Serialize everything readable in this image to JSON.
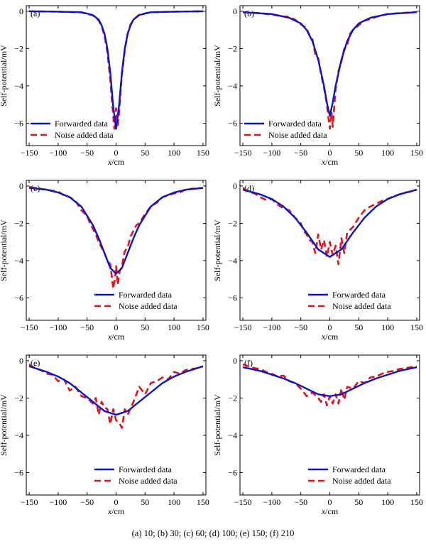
{
  "caption": "(a) 10; (b) 30; (c) 60; (d) 100; (e) 150; (f) 210",
  "chart_data": [
    {
      "type": "line",
      "panel_label": "(a)",
      "xlabel": "x/cm",
      "ylabel": "Self-potential/mV",
      "xlim": [
        -155,
        155
      ],
      "ylim": [
        -7.2,
        0.3
      ],
      "xticks": [
        -150,
        -100,
        -50,
        0,
        50,
        100,
        150
      ],
      "yticks": [
        0,
        -2,
        -4,
        -6
      ],
      "legend_position": "bottom-left",
      "series": [
        {
          "name": "Forwarded data",
          "color": "#0a14c8",
          "dash": "solid",
          "x": [
            -150,
            -100,
            -60,
            -40,
            -30,
            -25,
            -20,
            -15,
            -10,
            -5,
            0,
            5,
            10,
            15,
            20,
            25,
            30,
            40,
            60,
            100,
            150
          ],
          "y": [
            0,
            -0.02,
            -0.05,
            -0.2,
            -0.45,
            -0.75,
            -1.2,
            -2.0,
            -3.3,
            -5.1,
            -6.3,
            -5.1,
            -3.3,
            -2.0,
            -1.2,
            -0.75,
            -0.45,
            -0.2,
            -0.05,
            -0.02,
            0
          ]
        },
        {
          "name": "Noise added data",
          "color": "#e0141e",
          "dash": "dashed",
          "x": [
            -150,
            -100,
            -60,
            -40,
            -30,
            -25,
            -20,
            -15,
            -10,
            -5,
            -3,
            0,
            3,
            5,
            10,
            15,
            20,
            25,
            30,
            40,
            60,
            100,
            150
          ],
          "y": [
            0,
            -0.02,
            -0.06,
            -0.22,
            -0.5,
            -0.8,
            -1.3,
            -2.2,
            -3.7,
            -5.6,
            -6.3,
            -5.2,
            -6.1,
            -5.5,
            -3.4,
            -2.1,
            -1.2,
            -0.7,
            -0.45,
            -0.18,
            -0.05,
            -0.02,
            0
          ]
        }
      ]
    },
    {
      "type": "line",
      "panel_label": "(b)",
      "xlabel": "x/cm",
      "ylabel": "Self-potential/mV",
      "xlim": [
        -155,
        155
      ],
      "ylim": [
        -7.2,
        0.3
      ],
      "xticks": [
        -150,
        -100,
        -50,
        0,
        50,
        100,
        150
      ],
      "yticks": [
        0,
        -2,
        -4,
        -6
      ],
      "legend_position": "bottom-left",
      "series": [
        {
          "name": "Forwarded data",
          "color": "#0a14c8",
          "dash": "solid",
          "x": [
            -150,
            -100,
            -70,
            -50,
            -40,
            -30,
            -20,
            -10,
            -5,
            0,
            5,
            10,
            20,
            30,
            40,
            50,
            70,
            100,
            150
          ],
          "y": [
            -0.05,
            -0.15,
            -0.35,
            -0.65,
            -1.0,
            -1.6,
            -2.6,
            -4.0,
            -4.9,
            -5.6,
            -4.9,
            -4.0,
            -2.6,
            -1.6,
            -1.0,
            -0.65,
            -0.35,
            -0.15,
            -0.05
          ]
        },
        {
          "name": "Noise added data",
          "color": "#e0141e",
          "dash": "dashed",
          "x": [
            -150,
            -120,
            -100,
            -80,
            -70,
            -60,
            -50,
            -40,
            -35,
            -30,
            -25,
            -20,
            -15,
            -10,
            -5,
            0,
            3,
            5,
            8,
            10,
            15,
            20,
            25,
            30,
            35,
            40,
            50,
            60,
            70,
            80,
            100,
            120,
            150
          ],
          "y": [
            -0.05,
            -0.1,
            -0.18,
            -0.28,
            -0.3,
            -0.45,
            -0.7,
            -0.9,
            -1.3,
            -1.5,
            -2.3,
            -2.5,
            -3.4,
            -4.1,
            -5.0,
            -6.3,
            -5.4,
            -6.2,
            -5.0,
            -4.2,
            -3.2,
            -2.7,
            -2.0,
            -1.8,
            -1.2,
            -1.0,
            -0.75,
            -0.5,
            -0.42,
            -0.3,
            -0.15,
            -0.1,
            -0.04
          ]
        }
      ]
    },
    {
      "type": "line",
      "panel_label": "(c)",
      "xlabel": "x/cm",
      "ylabel": "Self-potential/mV",
      "xlim": [
        -155,
        155
      ],
      "ylim": [
        -7.2,
        0.3
      ],
      "xticks": [
        -150,
        -100,
        -50,
        0,
        50,
        100,
        150
      ],
      "yticks": [
        0,
        -2,
        -4,
        -6
      ],
      "legend_position": "bottom-right",
      "series": [
        {
          "name": "Forwarded data",
          "color": "#0a14c8",
          "dash": "solid",
          "x": [
            -150,
            -120,
            -100,
            -80,
            -60,
            -40,
            -30,
            -20,
            -10,
            0,
            10,
            20,
            30,
            40,
            60,
            80,
            100,
            120,
            150
          ],
          "y": [
            -0.1,
            -0.2,
            -0.35,
            -0.6,
            -1.1,
            -2.1,
            -2.8,
            -3.6,
            -4.4,
            -4.7,
            -4.4,
            -3.6,
            -2.8,
            -2.1,
            -1.1,
            -0.6,
            -0.35,
            -0.2,
            -0.1
          ]
        },
        {
          "name": "Noise added data",
          "color": "#e0141e",
          "dash": "dashed",
          "x": [
            -150,
            -130,
            -110,
            -100,
            -90,
            -80,
            -70,
            -60,
            -50,
            -45,
            -40,
            -35,
            -30,
            -25,
            -20,
            -15,
            -10,
            -5,
            -2,
            0,
            3,
            6,
            10,
            15,
            20,
            25,
            30,
            35,
            40,
            50,
            60,
            70,
            80,
            90,
            100,
            110,
            120,
            130,
            150
          ],
          "y": [
            -0.05,
            -0.15,
            -0.25,
            -0.3,
            -0.5,
            -0.6,
            -0.8,
            -1.3,
            -1.6,
            -2.0,
            -2.3,
            -2.6,
            -3.0,
            -3.3,
            -3.6,
            -4.0,
            -4.2,
            -5.5,
            -5.0,
            -4.3,
            -5.3,
            -4.6,
            -4.3,
            -3.5,
            -3.3,
            -2.7,
            -2.4,
            -2.1,
            -2.0,
            -1.5,
            -1.1,
            -0.9,
            -0.6,
            -0.5,
            -0.4,
            -0.35,
            -0.2,
            -0.15,
            -0.1
          ]
        }
      ]
    },
    {
      "type": "line",
      "panel_label": "(d)",
      "xlabel": "x/cm",
      "ylabel": "Self-potential/mV",
      "xlim": [
        -155,
        155
      ],
      "ylim": [
        -7.2,
        0.3
      ],
      "xticks": [
        -150,
        -100,
        -50,
        0,
        50,
        100,
        150
      ],
      "yticks": [
        0,
        -2,
        -4,
        -6
      ],
      "legend_position": "bottom-right",
      "series": [
        {
          "name": "Forwarded data",
          "color": "#0a14c8",
          "dash": "solid",
          "x": [
            -150,
            -120,
            -100,
            -80,
            -60,
            -40,
            -20,
            0,
            20,
            40,
            60,
            80,
            100,
            120,
            150
          ],
          "y": [
            -0.2,
            -0.45,
            -0.7,
            -1.1,
            -1.7,
            -2.5,
            -3.4,
            -3.8,
            -3.4,
            -2.5,
            -1.7,
            -1.1,
            -0.7,
            -0.45,
            -0.2
          ]
        },
        {
          "name": "Noise added data",
          "color": "#e0141e",
          "dash": "dashed",
          "x": [
            -150,
            -140,
            -130,
            -120,
            -110,
            -100,
            -90,
            -80,
            -70,
            -60,
            -50,
            -45,
            -40,
            -35,
            -30,
            -25,
            -20,
            -15,
            -10,
            -5,
            0,
            5,
            10,
            15,
            20,
            25,
            30,
            40,
            50,
            60,
            70,
            80,
            90,
            100,
            110,
            120,
            130,
            140,
            150
          ],
          "y": [
            -0.1,
            -0.3,
            -0.4,
            -0.6,
            -0.75,
            -0.7,
            -1.0,
            -1.2,
            -1.3,
            -1.7,
            -2.0,
            -2.4,
            -2.6,
            -2.9,
            -3.0,
            -3.6,
            -2.6,
            -3.4,
            -2.9,
            -3.8,
            -3.0,
            -3.7,
            -3.2,
            -4.2,
            -2.8,
            -3.6,
            -2.5,
            -2.2,
            -1.7,
            -1.3,
            -1.1,
            -0.95,
            -0.8,
            -0.7,
            -0.55,
            -0.45,
            -0.35,
            -0.3,
            -0.2
          ]
        }
      ]
    },
    {
      "type": "line",
      "panel_label": "(e)",
      "xlabel": "x/cm",
      "ylabel": "Self-potential/mV",
      "xlim": [
        -155,
        155
      ],
      "ylim": [
        -7.2,
        0.3
      ],
      "xticks": [
        -150,
        -100,
        -50,
        0,
        50,
        100,
        150
      ],
      "yticks": [
        0,
        -2,
        -4,
        -6
      ],
      "legend_position": "bottom-right",
      "series": [
        {
          "name": "Forwarded data",
          "color": "#0a14c8",
          "dash": "solid",
          "x": [
            -150,
            -120,
            -100,
            -80,
            -60,
            -40,
            -20,
            0,
            20,
            40,
            60,
            80,
            100,
            120,
            150
          ],
          "y": [
            -0.3,
            -0.6,
            -0.85,
            -1.2,
            -1.7,
            -2.2,
            -2.7,
            -2.9,
            -2.7,
            -2.2,
            -1.7,
            -1.2,
            -0.85,
            -0.6,
            -0.3
          ]
        },
        {
          "name": "Noise added data",
          "color": "#e0141e",
          "dash": "dashed",
          "x": [
            -150,
            -140,
            -130,
            -120,
            -110,
            -100,
            -90,
            -80,
            -70,
            -60,
            -50,
            -40,
            -35,
            -30,
            -25,
            -20,
            -15,
            -10,
            -5,
            0,
            5,
            10,
            15,
            20,
            30,
            40,
            50,
            60,
            70,
            80,
            90,
            100,
            110,
            120,
            130,
            140,
            150
          ],
          "y": [
            -0.2,
            -0.4,
            -0.5,
            -0.7,
            -0.75,
            -1.1,
            -1.0,
            -1.6,
            -1.4,
            -1.9,
            -2.0,
            -2.3,
            -2.0,
            -2.9,
            -2.2,
            -2.5,
            -2.6,
            -3.4,
            -2.6,
            -3.2,
            -3.3,
            -3.6,
            -2.6,
            -2.9,
            -2.2,
            -1.4,
            -1.8,
            -1.2,
            -1.1,
            -0.9,
            -1.0,
            -0.6,
            -0.7,
            -0.5,
            -0.45,
            -0.4,
            -0.3
          ]
        }
      ]
    },
    {
      "type": "line",
      "panel_label": "(f)",
      "xlabel": "x/cm",
      "ylabel": "Self-potential/mV",
      "xlim": [
        -155,
        155
      ],
      "ylim": [
        -7.2,
        0.3
      ],
      "xticks": [
        -150,
        -100,
        -50,
        0,
        50,
        100,
        150
      ],
      "yticks": [
        0,
        -2,
        -4,
        -6
      ],
      "legend_position": "bottom-right",
      "series": [
        {
          "name": "Forwarded data",
          "color": "#0a14c8",
          "dash": "solid",
          "x": [
            -150,
            -120,
            -100,
            -80,
            -60,
            -40,
            -20,
            0,
            20,
            40,
            60,
            80,
            100,
            120,
            150
          ],
          "y": [
            -0.35,
            -0.55,
            -0.75,
            -0.95,
            -1.2,
            -1.5,
            -1.8,
            -1.9,
            -1.8,
            -1.5,
            -1.2,
            -0.95,
            -0.75,
            -0.55,
            -0.35
          ]
        },
        {
          "name": "Noise added data",
          "color": "#e0141e",
          "dash": "dashed",
          "x": [
            -150,
            -140,
            -130,
            -120,
            -110,
            -100,
            -90,
            -80,
            -70,
            -60,
            -50,
            -40,
            -30,
            -20,
            -15,
            -10,
            -5,
            0,
            5,
            10,
            15,
            20,
            25,
            30,
            40,
            50,
            60,
            70,
            80,
            90,
            100,
            110,
            120,
            130,
            140,
            150
          ],
          "y": [
            -0.2,
            -0.3,
            -0.4,
            -0.45,
            -0.6,
            -0.7,
            -0.85,
            -0.8,
            -1.1,
            -1.2,
            -1.5,
            -1.9,
            -1.7,
            -2.0,
            -2.2,
            -1.8,
            -2.4,
            -1.9,
            -2.3,
            -1.8,
            -2.3,
            -1.5,
            -2.1,
            -1.4,
            -1.5,
            -1.1,
            -1.2,
            -0.9,
            -0.85,
            -0.7,
            -0.6,
            -0.55,
            -0.45,
            -0.4,
            -0.35,
            -0.3
          ]
        }
      ]
    }
  ]
}
